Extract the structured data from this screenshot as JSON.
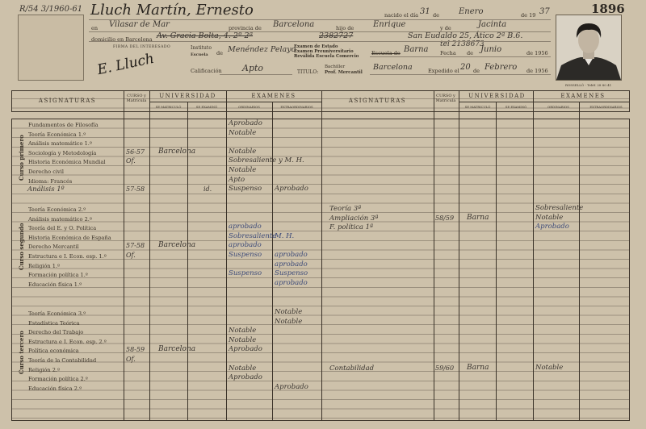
{
  "header": {
    "file_ref": "R/54  3/1960-61",
    "record_number": "1896",
    "name": "Lluch Martín, Ernesto",
    "birth_day_label": "nacido el día",
    "birth_day": "31",
    "de_label": "de",
    "birth_month": "Enero",
    "birth_year_label": "de 19",
    "birth_year": "37",
    "en_label": "en",
    "birthplace": "Vilasar de Mar",
    "provincia_label": "provincia de",
    "provincia": "Barcelona",
    "hijo_label": "hijo de",
    "father": "Enrique",
    "y_de_label": "y de",
    "mother": "Jacinta",
    "domicilio_label": "domicilio en Barcelona",
    "domicilio_old": "Av. Gracia Bolta, 4. 2º 2ª",
    "domicilio_phone_old": "2382727",
    "domicilio_new": "San Eudaldo 25, Ático 2ª B.6.",
    "phone_new": "tel 2138673",
    "firma_label": "FIRMA DEL INTERESADO",
    "firma": "E. Lluch",
    "instituto_label": "Instituto",
    "instituto_sub": "Escuela",
    "instituto": "Menéndez Pelayo",
    "examen_lines": [
      "Examen de Estado",
      "Examen Preuniversitario",
      "Reválida Escuela Comercio"
    ],
    "escuela_label": "Escuela de",
    "escuela": "Barna",
    "fecha_label": "Fecha",
    "fecha_month": "Junio",
    "fecha_year": "de 1956",
    "calificacion_label": "Calificación",
    "calificacion": "Apto",
    "titulo_label": "TITULO:",
    "titulo_lines": [
      "Bachiller",
      "Prof. Mercantil"
    ],
    "titulo_place": "Barcelona",
    "expedido_label": "Expedido el",
    "expedido_day": "20",
    "expedido_month": "Febrero",
    "expedido_year": "de 1956",
    "photo_caption": "ROSSELLÓ - Teléf. 28 80 41"
  },
  "columns": {
    "asignaturas": "ASIGNATURAS",
    "curso": "CURSO y Matrícula",
    "universidad": "UNIVERSIDAD",
    "se_matriculo": "SE MATRICULÓ",
    "se_examino": "SE EXAMINÓ",
    "examenes": "EXAMENES",
    "ordinarios": "ORDINARIOS",
    "extraordinarios": "EXTRAORDINARIOS"
  },
  "sections": [
    {
      "title": "Curso primero",
      "rows": [
        {
          "subject": "Fundamentos de Filosofía",
          "curso": "",
          "matriculo": "",
          "examino": "",
          "ord": "Aprobado",
          "extra": ""
        },
        {
          "subject": "Teoría Económica 1.º",
          "curso": "",
          "matriculo": "",
          "examino": "",
          "ord": "Notable",
          "extra": ""
        },
        {
          "subject": "Análisis matemático 1.º",
          "curso": "",
          "matriculo": "",
          "examino": "",
          "ord": "",
          "extra": ""
        },
        {
          "subject": "Sociología y Metodología",
          "curso": "56-57",
          "matriculo": "Barcelona",
          "examino": "",
          "ord": "Notable",
          "extra": ""
        },
        {
          "subject": "Historia Económica Mundial",
          "curso": "Of.",
          "matriculo": "",
          "examino": "",
          "ord": "Sobresaliente y M. H.",
          "extra": ""
        },
        {
          "subject": "Derecho civil",
          "curso": "",
          "matriculo": "",
          "examino": "",
          "ord": "Notable",
          "extra": ""
        },
        {
          "subject": "Idioma: Francés",
          "curso": "",
          "matriculo": "",
          "examino": "",
          "ord": "Apto",
          "extra": ""
        },
        {
          "subject": "Análisis 1º",
          "handwritten": true,
          "curso": "57-58",
          "matriculo": "",
          "examino": "id.",
          "ord": "Suspenso",
          "extra": "Aprobado"
        }
      ]
    },
    {
      "title": "Curso segundo",
      "rows": [
        {
          "subject": "Teoría Económica 2.º",
          "curso": "",
          "matriculo": "",
          "examino": "",
          "ord": "",
          "extra": ""
        },
        {
          "subject": "Análisis matemático 2.º",
          "curso": "",
          "matriculo": "",
          "examino": "",
          "ord": "",
          "extra": ""
        },
        {
          "subject": "Teoría del E. y O. Política",
          "curso": "",
          "matriculo": "",
          "examino": "",
          "ord": "aprobado",
          "extra": ""
        },
        {
          "subject": "Historia Económica de España",
          "curso": "",
          "matriculo": "",
          "examino": "",
          "ord": "Sobresaliente",
          "extra": "M. H."
        },
        {
          "subject": "Derecho Mercantil",
          "curso": "57-58",
          "matriculo": "Barcelona",
          "examino": "",
          "ord": "aprobado",
          "extra": ""
        },
        {
          "subject": "Estructura e I. Econ. esp. 1.º",
          "curso": "Of.",
          "matriculo": "",
          "examino": "",
          "ord": "Suspenso",
          "extra": "aprobado"
        },
        {
          "subject": "Religión 1.º",
          "curso": "",
          "matriculo": "",
          "examino": "",
          "ord": "",
          "extra": "aprobado"
        },
        {
          "subject": "Formación política 1.º",
          "curso": "",
          "matriculo": "",
          "examino": "",
          "ord": "Suspenso",
          "extra": "Suspenso"
        },
        {
          "subject": "Educación física 1.º",
          "curso": "",
          "matriculo": "",
          "examino": "",
          "ord": "",
          "extra": "aprobado"
        }
      ]
    },
    {
      "title": "Curso tercero",
      "rows": [
        {
          "subject": "Teoría Económica 3.º",
          "curso": "",
          "matriculo": "",
          "examino": "",
          "ord": "",
          "extra": "Notable"
        },
        {
          "subject": "Estadística Teórica",
          "curso": "",
          "matriculo": "",
          "examino": "",
          "ord": "",
          "extra": "Notable"
        },
        {
          "subject": "Derecho del Trabajo",
          "curso": "",
          "matriculo": "",
          "examino": "",
          "ord": "Notable",
          "extra": ""
        },
        {
          "subject": "Estructura e I. Econ. esp. 2.º",
          "curso": "",
          "matriculo": "",
          "examino": "",
          "ord": "Notable",
          "extra": ""
        },
        {
          "subject": "Política económica",
          "curso": "58-59",
          "matriculo": "Barcelona",
          "examino": "",
          "ord": "Aprobado",
          "extra": ""
        },
        {
          "subject": "Teoría de la Contabilidad",
          "curso": "Of.",
          "matriculo": "",
          "examino": "",
          "ord": "",
          "extra": ""
        },
        {
          "subject": "Religión 2.º",
          "curso": "",
          "matriculo": "",
          "examino": "",
          "ord": "Notable",
          "extra": ""
        },
        {
          "subject": "Formación política 2.º",
          "curso": "",
          "matriculo": "",
          "examino": "",
          "ord": "Aprobado",
          "extra": ""
        },
        {
          "subject": "Educación física 2.º",
          "curso": "",
          "matriculo": "",
          "examino": "",
          "ord": "",
          "extra": "Aprobado"
        }
      ]
    }
  ],
  "right_rows": [
    {
      "subject": "Teoría 3ª",
      "curso": "",
      "matriculo": "",
      "ord": "Sobresaliente"
    },
    {
      "subject": "Ampliación 3ª",
      "curso": "58/59",
      "matriculo": "Barna",
      "ord": "Notable"
    },
    {
      "subject": "F. política 1ª",
      "curso": "",
      "matriculo": "",
      "ord": "Aprobado"
    },
    {
      "subject": "Contabilidad",
      "curso": "59/60",
      "matriculo": "Barna",
      "ord": "Notable"
    }
  ]
}
